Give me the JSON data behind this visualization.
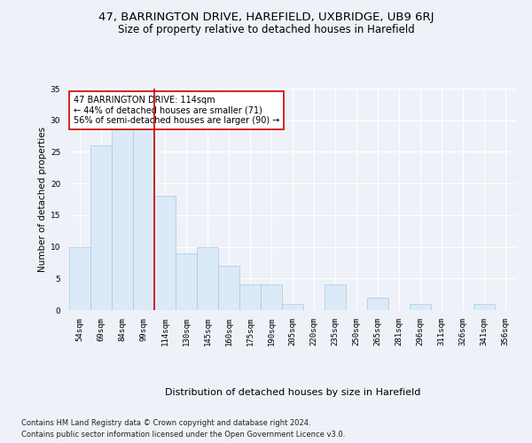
{
  "title1": "47, BARRINGTON DRIVE, HAREFIELD, UXBRIDGE, UB9 6RJ",
  "title2": "Size of property relative to detached houses in Harefield",
  "xlabel": "Distribution of detached houses by size in Harefield",
  "ylabel": "Number of detached properties",
  "footer1": "Contains HM Land Registry data © Crown copyright and database right 2024.",
  "footer2": "Contains public sector information licensed under the Open Government Licence v3.0.",
  "annotation_line1": "47 BARRINGTON DRIVE: 114sqm",
  "annotation_line2": "← 44% of detached houses are smaller (71)",
  "annotation_line3": "56% of semi-detached houses are larger (90) →",
  "bar_color": "#daeaf7",
  "bar_edge_color": "#a8c8e8",
  "highlight_line_color": "#cc0000",
  "categories": [
    "54sqm",
    "69sqm",
    "84sqm",
    "99sqm",
    "114sqm",
    "130sqm",
    "145sqm",
    "160sqm",
    "175sqm",
    "190sqm",
    "205sqm",
    "220sqm",
    "235sqm",
    "250sqm",
    "265sqm",
    "281sqm",
    "296sqm",
    "311sqm",
    "326sqm",
    "341sqm",
    "356sqm"
  ],
  "values": [
    10,
    26,
    29,
    29,
    18,
    9,
    10,
    7,
    4,
    4,
    1,
    0,
    4,
    0,
    2,
    0,
    1,
    0,
    0,
    1,
    0
  ],
  "ylim": [
    0,
    35
  ],
  "yticks": [
    0,
    5,
    10,
    15,
    20,
    25,
    30,
    35
  ],
  "bg_color": "#eef2f8",
  "plot_bg_color": "#eef2f8",
  "grid_color": "#ffffff",
  "title_fontsize": 9.5,
  "subtitle_fontsize": 8.5,
  "xlabel_fontsize": 8,
  "ylabel_fontsize": 7.5,
  "tick_fontsize": 6.5,
  "footer_fontsize": 6,
  "annot_fontsize": 7
}
